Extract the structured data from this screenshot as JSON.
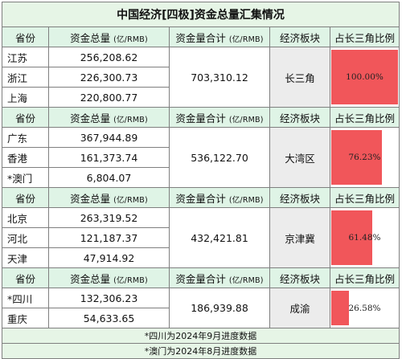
{
  "title": "中国经济[四极]资金总量汇集情况",
  "headers": {
    "province": "省份",
    "amount": "资金总量",
    "amount_unit": "(亿/RMB)",
    "total": "资金量合计",
    "total_unit": "(亿/RMB)",
    "region": "经济板块",
    "ratio": "占长三角比例"
  },
  "blocks": [
    {
      "rows": [
        {
          "province": "江苏",
          "amount": "256,208.62"
        },
        {
          "province": "浙江",
          "amount": "226,300.73"
        },
        {
          "province": "上海",
          "amount": "220,800.77"
        }
      ],
      "total": "703,310.12",
      "region": "长三角",
      "ratio_label": "100.00%",
      "ratio_value": 1.0
    },
    {
      "rows": [
        {
          "province": "广东",
          "amount": "367,944.89"
        },
        {
          "province": "香港",
          "amount": "161,373.74"
        },
        {
          "province": "*澳门",
          "amount": "6,804.07"
        }
      ],
      "total": "536,122.70",
      "region": "大湾区",
      "ratio_label": "76.23%",
      "ratio_value": 0.7623
    },
    {
      "rows": [
        {
          "province": "北京",
          "amount": "263,319.52"
        },
        {
          "province": "河北",
          "amount": "121,187.37"
        },
        {
          "province": "天津",
          "amount": "47,914.92"
        }
      ],
      "total": "432,421.81",
      "region": "京津冀",
      "ratio_label": "61.48%",
      "ratio_value": 0.6148
    },
    {
      "rows": [
        {
          "province": "*四川",
          "amount": "132,306.23"
        },
        {
          "province": "重庆",
          "amount": "54,633.65"
        }
      ],
      "total": "186,939.88",
      "region": "成渝",
      "ratio_label": "26.58%",
      "ratio_value": 0.2658
    }
  ],
  "notes": [
    "*四川为2024年9月进度数据",
    "*澳门为2024年8月进度数据"
  ],
  "colors": {
    "bar": "#f1565a",
    "header_bg": "#dff4e6",
    "region_bg": "#ececec"
  }
}
